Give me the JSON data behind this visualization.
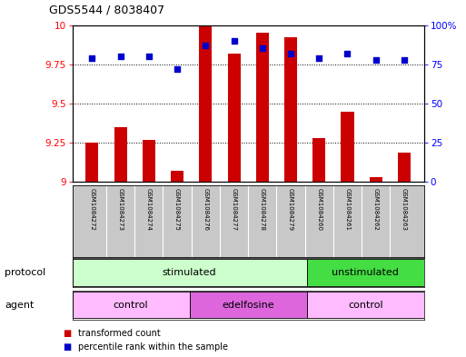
{
  "title": "GDS5544 / 8038407",
  "samples": [
    "GSM1084272",
    "GSM1084273",
    "GSM1084274",
    "GSM1084275",
    "GSM1084276",
    "GSM1084277",
    "GSM1084278",
    "GSM1084279",
    "GSM1084260",
    "GSM1084261",
    "GSM1084262",
    "GSM1084263"
  ],
  "transformed_count": [
    9.25,
    9.35,
    9.27,
    9.07,
    10.0,
    9.82,
    9.95,
    9.92,
    9.28,
    9.45,
    9.03,
    9.19
  ],
  "percentile_rank": [
    79,
    80,
    80,
    72,
    87,
    90,
    85,
    82,
    79,
    82,
    78,
    78
  ],
  "ylim_left": [
    9.0,
    10.0
  ],
  "ylim_right": [
    0,
    100
  ],
  "yticks_left": [
    9.0,
    9.25,
    9.5,
    9.75,
    10.0
  ],
  "yticks_labels_left": [
    "9",
    "9.25",
    "9.5",
    "9.75",
    "10"
  ],
  "yticks_right": [
    0,
    25,
    50,
    75,
    100
  ],
  "yticks_labels_right": [
    "0",
    "25",
    "50",
    "75",
    "100%"
  ],
  "bar_color": "#cc0000",
  "dot_color": "#0000cc",
  "protocol_groups": [
    {
      "label": "stimulated",
      "start": 0,
      "end": 8,
      "color": "#ccffcc"
    },
    {
      "label": "unstimulated",
      "start": 8,
      "end": 12,
      "color": "#44dd44"
    }
  ],
  "agent_groups": [
    {
      "label": "control",
      "start": 0,
      "end": 4,
      "color": "#ffbbff"
    },
    {
      "label": "edelfosine",
      "start": 4,
      "end": 8,
      "color": "#dd66dd"
    },
    {
      "label": "control",
      "start": 8,
      "end": 12,
      "color": "#ffbbff"
    }
  ],
  "legend_bar_label": "transformed count",
  "legend_dot_label": "percentile rank within the sample",
  "bar_color_legend": "#cc0000",
  "dot_color_legend": "#0000cc",
  "bar_width": 0.45,
  "dot_size": 25,
  "fig_bg": "#ffffff",
  "label_area_color": "#c8c8c8",
  "grid_ticks": [
    9.25,
    9.5,
    9.75
  ],
  "protocol_label": "protocol",
  "agent_label": "agent"
}
